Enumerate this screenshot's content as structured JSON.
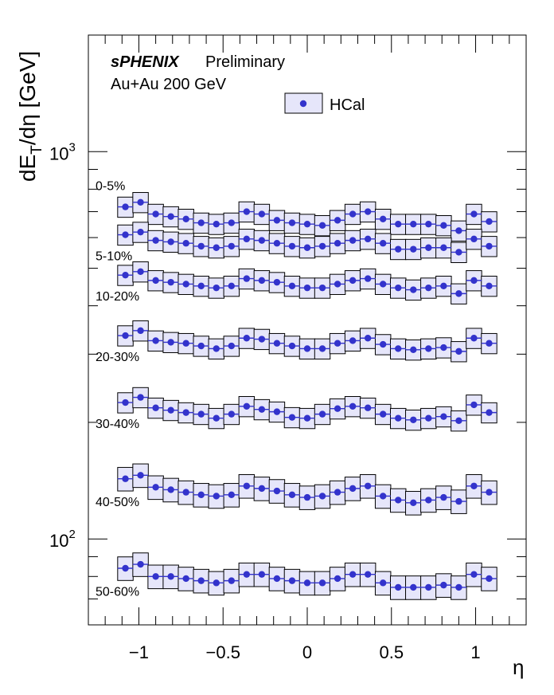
{
  "chart_data": {
    "type": "scatter",
    "experiment": "sPHENIX",
    "status": "Preliminary",
    "system": "Au+Au 200 GeV",
    "xlabel": "η",
    "ylabel_main": "dE",
    "ylabel_sub": "T",
    "ylabel_rest": "/dη [GeV]",
    "xlim": [
      -1.3,
      1.3
    ],
    "ylim": [
      60,
      2000
    ],
    "yscale": "log",
    "x_ticks": [
      -1,
      -0.5,
      0,
      0.5,
      1
    ],
    "x_tick_labels": [
      "−1",
      "−0.5",
      "0",
      "0.5",
      "1"
    ],
    "y_major_ticks": [
      100,
      1000
    ],
    "y_tick_labels": [
      {
        "base": "10",
        "exp": "2"
      },
      {
        "base": "10",
        "exp": "3"
      }
    ],
    "legend": [
      {
        "label": "HCal"
      }
    ],
    "legend_position": "top-right",
    "grid": false,
    "colors": {
      "marker": "#3333cc",
      "band_fill": "#e6e6fa",
      "band_stroke": "#000000"
    },
    "bin_half_width": 0.046,
    "x": [
      -1.08,
      -0.99,
      -0.9,
      -0.81,
      -0.72,
      -0.63,
      -0.54,
      -0.45,
      -0.36,
      -0.27,
      -0.18,
      -0.09,
      0.0,
      0.09,
      0.18,
      0.27,
      0.36,
      0.45,
      0.54,
      0.63,
      0.72,
      0.81,
      0.9,
      0.99,
      1.08
    ],
    "series": [
      {
        "name": "0-5%",
        "sys": 0.06,
        "values": [
          720,
          740,
          690,
          680,
          670,
          655,
          650,
          655,
          700,
          690,
          665,
          655,
          650,
          645,
          665,
          690,
          700,
          670,
          650,
          650,
          650,
          645,
          625,
          690,
          660
        ]
      },
      {
        "name": "5-10%",
        "sys": 0.06,
        "values": [
          610,
          620,
          590,
          585,
          580,
          570,
          565,
          570,
          595,
          590,
          580,
          570,
          565,
          570,
          580,
          590,
          595,
          580,
          560,
          560,
          565,
          565,
          550,
          595,
          570
        ]
      },
      {
        "name": "10-20%",
        "sys": 0.06,
        "values": [
          480,
          490,
          465,
          460,
          455,
          450,
          445,
          450,
          470,
          465,
          460,
          450,
          445,
          445,
          455,
          465,
          470,
          455,
          445,
          440,
          445,
          450,
          430,
          465,
          450
        ]
      },
      {
        "name": "20-30%",
        "sys": 0.06,
        "values": [
          335,
          345,
          325,
          322,
          320,
          315,
          310,
          315,
          330,
          328,
          320,
          315,
          310,
          310,
          320,
          325,
          330,
          318,
          310,
          308,
          310,
          312,
          305,
          330,
          320
        ]
      },
      {
        "name": "30-40%",
        "sys": 0.06,
        "values": [
          225,
          232,
          218,
          215,
          212,
          210,
          205,
          210,
          220,
          216,
          213,
          206,
          205,
          210,
          217,
          220,
          218,
          210,
          205,
          203,
          205,
          207,
          202,
          222,
          212
        ]
      },
      {
        "name": "40-50%",
        "sys": 0.07,
        "values": [
          143,
          146,
          136,
          134,
          132,
          130,
          129,
          130,
          137,
          135,
          133,
          130,
          128,
          129,
          132,
          135,
          137,
          129,
          126,
          124,
          126,
          128,
          125,
          137,
          132
        ]
      },
      {
        "name": "50-60%",
        "sys": 0.07,
        "values": [
          84,
          86,
          80,
          80,
          79,
          78,
          77,
          78,
          81,
          81,
          79,
          78,
          77,
          77,
          79,
          81,
          81,
          77,
          75,
          75,
          75,
          76,
          75,
          81,
          79
        ]
      }
    ]
  }
}
